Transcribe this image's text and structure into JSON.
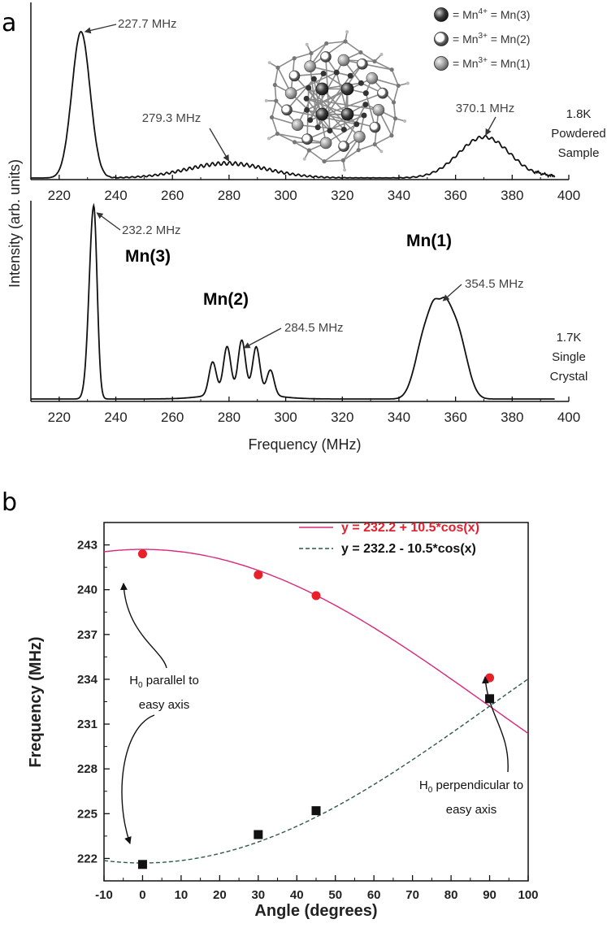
{
  "panel_a": {
    "letter": "a",
    "ylabel": "Intensity (arb. units)",
    "xlabel": "Frequency (MHz)",
    "legend": [
      {
        "ion": "Mn",
        "charge": "4+",
        "site": "= Mn(3)",
        "style": "dark"
      },
      {
        "ion": "Mn",
        "charge": "3+",
        "site": "= Mn(2)",
        "style": "ring"
      },
      {
        "ion": "Mn",
        "charge": "3+",
        "site": "= Mn(1)",
        "style": "grey"
      }
    ]
  },
  "chart_data": [
    {
      "type": "line",
      "id": "powdered",
      "xlim": [
        210,
        400
      ],
      "xticks": [
        220,
        240,
        260,
        280,
        300,
        320,
        340,
        360,
        380,
        400
      ],
      "condition": [
        "1.8K",
        "Powdered",
        "Sample"
      ],
      "peaks": [
        {
          "freq": 227.7,
          "label": "227.7 MHz",
          "height": 1.0,
          "width": 3.2
        },
        {
          "freq": 279.3,
          "label": "279.3 MHz",
          "height": 0.1,
          "width": 14
        },
        {
          "freq": 370.1,
          "label": "370.1 MHz",
          "height": 0.28,
          "width": 9
        }
      ]
    },
    {
      "type": "line",
      "id": "single_crystal",
      "xlim": [
        210,
        400
      ],
      "xticks": [
        220,
        240,
        260,
        280,
        300,
        320,
        340,
        360,
        380,
        400
      ],
      "condition": [
        "1.7K",
        "Single",
        "Crystal"
      ],
      "site_labels": [
        "Mn(3)",
        "Mn(2)",
        "Mn(1)"
      ],
      "peaks": [
        {
          "freq": 232.2,
          "label": "232.2 MHz",
          "height": 1.0
        },
        {
          "freq": 284.5,
          "label": "284.5 MHz",
          "height": 0.27
        },
        {
          "freq": 354.5,
          "label": "354.5 MHz",
          "height": 0.52
        }
      ],
      "mn2_multiplet": [
        {
          "freq": 274.2,
          "height": 0.17
        },
        {
          "freq": 279.3,
          "height": 0.24
        },
        {
          "freq": 284.5,
          "height": 0.27
        },
        {
          "freq": 289.6,
          "height": 0.24
        },
        {
          "freq": 294.6,
          "height": 0.13
        }
      ]
    },
    {
      "type": "scatter",
      "id": "angle_dependence",
      "panel_letter": "b",
      "xlabel": "Angle (degrees)",
      "ylabel": "Frequency (MHz)",
      "xlim": [
        -10,
        100
      ],
      "ylim": [
        220.5,
        244.5
      ],
      "xticks": [
        -10,
        0,
        10,
        20,
        30,
        40,
        50,
        60,
        70,
        80,
        90,
        100
      ],
      "yticks": [
        222,
        225,
        228,
        231,
        234,
        237,
        240,
        243
      ],
      "series": [
        {
          "name": "red circles",
          "marker": "circle",
          "color": "#e8202a",
          "x": [
            0,
            30,
            45,
            90
          ],
          "y": [
            242.4,
            241.0,
            239.6,
            234.1
          ]
        },
        {
          "name": "black squares",
          "marker": "square",
          "color": "#111111",
          "x": [
            0,
            30,
            45,
            90
          ],
          "y": [
            221.6,
            223.6,
            225.2,
            232.7
          ]
        }
      ],
      "fits": [
        {
          "label": "y = 232.2 + 10.5*cos(x)",
          "sign": 1,
          "a": 232.2,
          "b": 10.5,
          "color": "#d8287a",
          "dash": false
        },
        {
          "label": "y = 232.2 - 10.5*cos(x)",
          "sign": -1,
          "a": 232.2,
          "b": 10.5,
          "color": "#2f5a45",
          "dash": true
        }
      ],
      "annotations": [
        {
          "lines": [
            "H0 parallel to",
            "easy axis"
          ]
        },
        {
          "lines": [
            "H0 perpendicular to",
            "easy axis"
          ]
        }
      ]
    }
  ]
}
